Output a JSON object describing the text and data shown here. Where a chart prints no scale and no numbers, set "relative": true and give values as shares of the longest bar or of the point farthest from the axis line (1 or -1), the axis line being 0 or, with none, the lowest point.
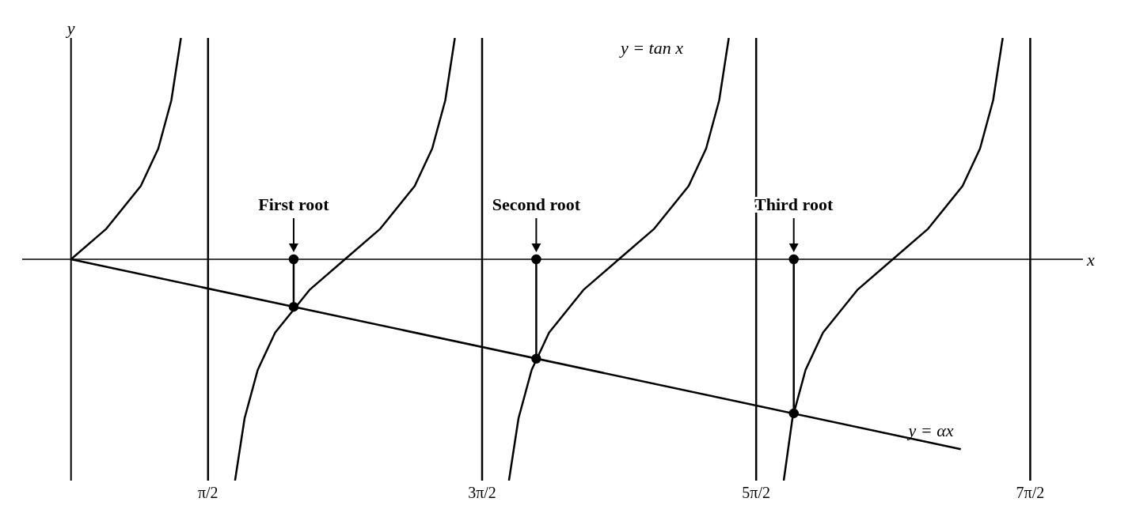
{
  "chart_data": {
    "type": "line",
    "relative": true,
    "xlabel": "x",
    "ylabel": "y",
    "xlim": [
      -0.56,
      11.6
    ],
    "xticks": [
      {
        "value": 1.5708,
        "label": "π/2"
      },
      {
        "value": 4.7124,
        "label": "3π/2"
      },
      {
        "value": 7.854,
        "label": "5π/2"
      },
      {
        "value": 10.9956,
        "label": "7π/2"
      }
    ],
    "tick_labels": "x",
    "marker": "none",
    "line_style": "solid",
    "series": [
      {
        "color": "#000000",
        "x": [
          0,
          0.4,
          0.8,
          1.0,
          1.15,
          1.26
        ],
        "values": [
          0,
          0.136,
          0.331,
          0.5,
          0.718,
          1
        ]
      },
      {
        "color": "#000000",
        "x": [
          1.88,
          1.99,
          2.14,
          2.34,
          2.74,
          3.14,
          3.54,
          3.94,
          4.14,
          4.29,
          4.4
        ],
        "values": [
          -1,
          -0.718,
          -0.5,
          -0.331,
          -0.136,
          0,
          0.136,
          0.331,
          0.5,
          0.718,
          1
        ]
      },
      {
        "color": "#000000",
        "x": [
          5.02,
          5.13,
          5.28,
          5.48,
          5.88,
          6.28,
          6.68,
          7.08,
          7.28,
          7.43,
          7.54
        ],
        "values": [
          -1,
          -0.718,
          -0.5,
          -0.331,
          -0.136,
          0,
          0.136,
          0.331,
          0.5,
          0.718,
          1
        ]
      },
      {
        "color": "#000000",
        "x": [
          8.17,
          8.27,
          8.42,
          8.62,
          9.02,
          9.42,
          9.82,
          10.22,
          10.42,
          10.57,
          10.68
        ],
        "values": [
          -1,
          -0.718,
          -0.5,
          -0.331,
          -0.136,
          0,
          0.136,
          0.331,
          0.5,
          0.718,
          1
        ]
      },
      {
        "color": "#000000",
        "x": [
          0,
          10.2
        ],
        "values": [
          0,
          -0.858
        ]
      },
      {
        "color": "#000000",
        "marker": "circle",
        "x": [
          2.552,
          2.552
        ],
        "values": [
          0,
          -0.215
        ]
      },
      {
        "color": "#000000",
        "marker": "circle",
        "x": [
          5.333,
          5.333
        ],
        "values": [
          0,
          -0.449
        ]
      },
      {
        "color": "#000000",
        "marker": "circle",
        "x": [
          8.285,
          8.285
        ],
        "values": [
          0,
          -0.696
        ]
      }
    ],
    "ref_lines": [
      {
        "axis": "x",
        "value": 1.5708
      },
      {
        "axis": "x",
        "value": 4.7124
      },
      {
        "axis": "x",
        "value": 7.854
      },
      {
        "axis": "x",
        "value": 10.9956
      }
    ],
    "annotations": [
      {
        "text": "First root",
        "x": 2.552,
        "y": 0
      },
      {
        "text": "Second root",
        "x": 5.333,
        "y": 0
      },
      {
        "text": "Third root",
        "x": 8.285,
        "y": 0
      },
      "y = tan x",
      "y = αx"
    ]
  }
}
